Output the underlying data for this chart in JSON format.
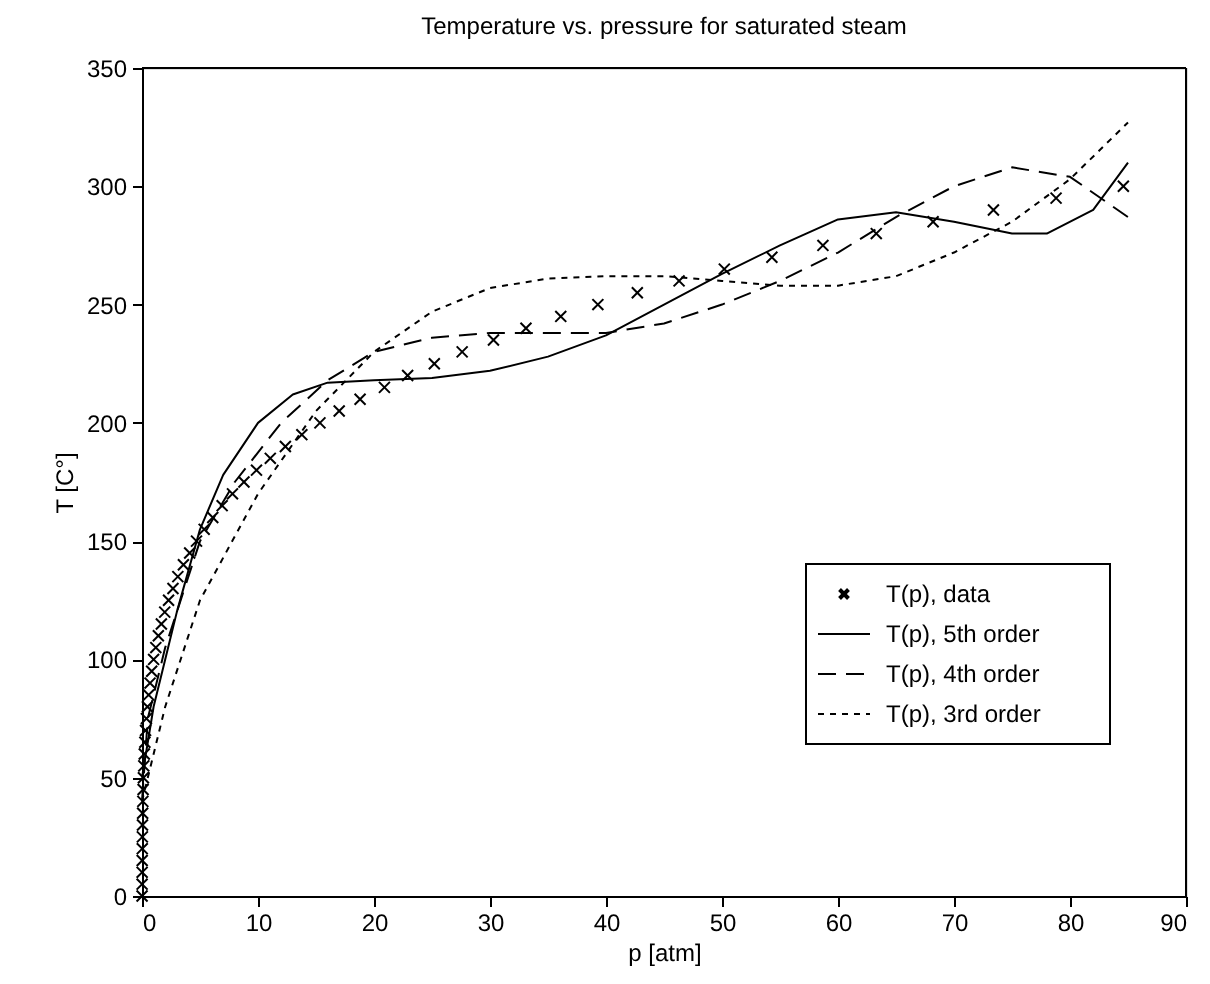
{
  "chart_data": {
    "type": "line",
    "title": "Temperature vs. pressure for saturated steam",
    "xlabel": "p [atm]",
    "ylabel": "T [C°]",
    "xlim": [
      0,
      90
    ],
    "ylim": [
      0,
      350
    ],
    "xticks": [
      0,
      10,
      20,
      30,
      40,
      50,
      60,
      70,
      80,
      90
    ],
    "yticks": [
      0,
      50,
      100,
      150,
      200,
      250,
      300,
      350
    ],
    "grid": false,
    "legend": "right",
    "series": [
      {
        "name": "T(p), data",
        "type": "scatter",
        "marker": "cross",
        "color": "#000000",
        "x": [
          0.006,
          0.0086,
          0.0121,
          0.0168,
          0.023,
          0.031,
          0.042,
          0.055,
          0.073,
          0.095,
          0.122,
          0.155,
          0.197,
          0.247,
          0.307,
          0.38,
          0.467,
          0.571,
          0.692,
          0.834,
          1.0,
          1.19,
          1.41,
          1.67,
          1.96,
          2.29,
          2.67,
          3.09,
          3.57,
          4.11,
          4.7,
          5.36,
          6.1,
          6.91,
          7.8,
          8.79,
          9.87,
          11.06,
          12.36,
          13.78,
          15.34,
          17.0,
          18.8,
          20.9,
          22.9,
          25.2,
          27.6,
          30.3,
          33.1,
          36.1,
          39.3,
          42.7,
          46.3,
          50.2,
          54.3,
          58.7,
          63.3,
          68.2,
          73.4,
          78.8,
          84.6
        ],
        "values": [
          0,
          5,
          10,
          15,
          20,
          25,
          30,
          35,
          40,
          45,
          50,
          55,
          60,
          65,
          70,
          75,
          80,
          85,
          90,
          95,
          100,
          105,
          110,
          115,
          120,
          125,
          130,
          135,
          140,
          145,
          150,
          155,
          160,
          165,
          170,
          175,
          180,
          185,
          190,
          195,
          200,
          205,
          210,
          215,
          220,
          225,
          230,
          235,
          240,
          245,
          250,
          255,
          260,
          265,
          270,
          275,
          280,
          285,
          290,
          295,
          300
        ]
      },
      {
        "name": "T(p), 5th order",
        "marker": "none",
        "line_style": "solid",
        "color": "#000000",
        "x": [
          0,
          1,
          2,
          3,
          5,
          7,
          10,
          13,
          16,
          20,
          25,
          30,
          35,
          40,
          45,
          50,
          55,
          60,
          65,
          70,
          75,
          78,
          82,
          85
        ],
        "values": [
          50,
          80,
          100,
          120,
          155,
          178,
          200,
          212,
          217,
          218,
          219,
          222,
          228,
          237,
          250,
          263,
          275,
          286,
          289,
          285,
          280,
          280,
          290,
          310
        ]
      },
      {
        "name": "T(p), 4th order",
        "marker": "none",
        "line_style": "dashed",
        "color": "#000000",
        "x": [
          0,
          0.5,
          2,
          5,
          8,
          12,
          16,
          20,
          25,
          30,
          35,
          40,
          45,
          50,
          55,
          60,
          65,
          70,
          75,
          80,
          85
        ],
        "values": [
          40,
          75,
          105,
          150,
          175,
          200,
          218,
          230,
          236,
          238,
          238,
          238,
          242,
          250,
          260,
          272,
          287,
          300,
          308,
          304,
          287
        ]
      },
      {
        "name": "T(p), 3rd order",
        "marker": "none",
        "line_style": "dotted",
        "color": "#000000",
        "x": [
          0,
          2,
          5,
          10,
          15,
          20,
          25,
          30,
          35,
          40,
          45,
          50,
          55,
          60,
          65,
          70,
          75,
          80,
          85
        ],
        "values": [
          40,
          80,
          125,
          170,
          205,
          230,
          247,
          257,
          261,
          262,
          262,
          260,
          258,
          258,
          262,
          272,
          285,
          303,
          327
        ]
      }
    ]
  }
}
